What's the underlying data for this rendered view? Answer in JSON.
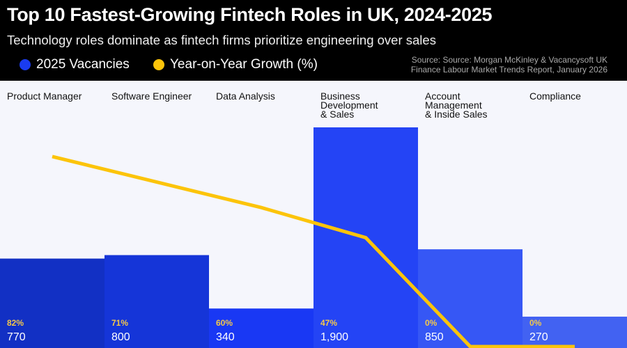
{
  "header": {
    "title": "Top 10 Fastest-Growing Fintech Roles in UK, 2024-2025",
    "subtitle": "Technology roles dominate as fintech firms prioritize engineering over sales",
    "source_line1": "Source: Source: Morgan McKinley & Vacancysoft UK",
    "source_line2": "Finance Labour Market Trends Report, January 2026"
  },
  "chart_data": {
    "type": "bar+line",
    "title": "Top 10 Fastest-Growing Fintech Roles in UK, 2024-2025",
    "categories": [
      "Product Manager",
      "Software Engineer",
      "Data Analysis",
      "Business Development & Sales",
      "Account Management & Inside Sales",
      "Compliance"
    ],
    "category_labels": [
      [
        "Product Manager"
      ],
      [
        "Software Engineer"
      ],
      [
        "Data Analysis"
      ],
      [
        "Business",
        "Development",
        "& Sales"
      ],
      [
        "Account",
        "Management",
        "& Inside Sales"
      ],
      [
        "Compliance"
      ]
    ],
    "series": [
      {
        "name": "2025 Vacancies",
        "type": "bar",
        "values": [
          770,
          800,
          340,
          1900,
          850,
          270
        ],
        "labels": [
          "770",
          "800",
          "340",
          "1,900",
          "850",
          "270"
        ],
        "color": "#1a3cf0"
      },
      {
        "name": "Year-on-Year Growth (%)",
        "type": "line",
        "values": [
          82,
          71,
          60,
          47,
          0,
          0
        ],
        "labels": [
          "82%",
          "71%",
          "60%",
          "47%",
          "0%",
          "0%"
        ],
        "color": "#fcc40a"
      }
    ],
    "bar_colors": [
      "#1230c4",
      "#1535d8",
      "#1938f4",
      "#2444f5",
      "#3657f5",
      "#4262f2"
    ],
    "legend_position": "top-left",
    "grid": false
  }
}
